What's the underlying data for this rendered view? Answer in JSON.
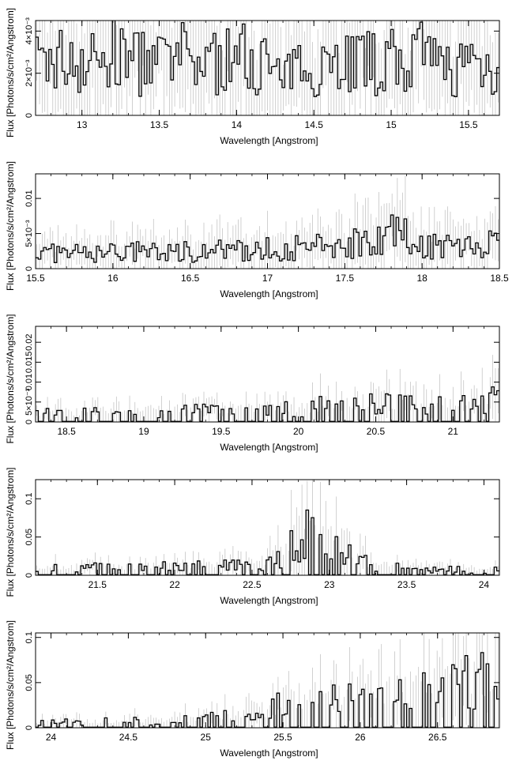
{
  "panels": [
    {
      "xlabel": "Wavelength [Angstrom]",
      "ylabel": "Flux [Photons/s/cm²/Angstrom]",
      "xlim": [
        12.7,
        15.7
      ],
      "ylim": [
        0,
        0.0045
      ],
      "x_ticks": [
        "13",
        "13.5",
        "14",
        "14.5",
        "15",
        "15.5"
      ],
      "x_tick_values": [
        13,
        13.5,
        14,
        14.5,
        15,
        15.5
      ],
      "y_ticks": [
        "0",
        "2×10⁻³",
        "4×10⁻³"
      ],
      "y_tick_values": [
        0,
        0.002,
        0.004
      ]
    },
    {
      "xlabel": "Wavelength [Angstrom]",
      "ylabel": "Flux [Photons/s/cm²/Angstrom]",
      "xlim": [
        15.5,
        18.5
      ],
      "ylim": [
        0,
        0.0135
      ],
      "x_ticks": [
        "15.5",
        "16",
        "16.5",
        "17",
        "17.5",
        "18",
        "18.5"
      ],
      "x_tick_values": [
        15.5,
        16,
        16.5,
        17,
        17.5,
        18,
        18.5
      ],
      "y_ticks": [
        "0",
        "5×10⁻³",
        "0.01"
      ],
      "y_tick_values": [
        0,
        0.005,
        0.01
      ]
    },
    {
      "xlabel": "Wavelength [Angstrom]",
      "ylabel": "Flux [Photons/s/cm²/Angstrom]",
      "xlim": [
        18.3,
        21.3
      ],
      "ylim": [
        0,
        0.024
      ],
      "x_ticks": [
        "18.5",
        "19",
        "19.5",
        "20",
        "20.5",
        "21"
      ],
      "x_tick_values": [
        18.5,
        19,
        19.5,
        20,
        20.5,
        21
      ],
      "y_ticks": [
        "0",
        "5×10⁻³",
        "0.01",
        "0.015",
        "0.02"
      ],
      "y_tick_values": [
        0,
        0.005,
        0.01,
        0.015,
        0.02
      ]
    },
    {
      "xlabel": "Wavelength [Angstrom]",
      "ylabel": "Flux [Photons/s/cm²/Angstrom]",
      "xlim": [
        21.1,
        24.1
      ],
      "ylim": [
        0,
        0.125
      ],
      "x_ticks": [
        "21.5",
        "22",
        "22.5",
        "23",
        "23.5",
        "24"
      ],
      "x_tick_values": [
        21.5,
        22,
        22.5,
        23,
        23.5,
        24
      ],
      "y_ticks": [
        "0",
        "0.05",
        "0.1"
      ],
      "y_tick_values": [
        0,
        0.05,
        0.1
      ]
    },
    {
      "xlabel": "Wavelength [Angstrom]",
      "ylabel": "Flux [Photons/s/cm²/Angstrom]",
      "xlim": [
        23.9,
        26.9
      ],
      "ylim": [
        0,
        0.105
      ],
      "x_ticks": [
        "24",
        "24.5",
        "25",
        "25.5",
        "26",
        "26.5"
      ],
      "x_tick_values": [
        24,
        24.5,
        25,
        25.5,
        26,
        26.5
      ],
      "y_ticks": [
        "0",
        "0.05",
        "0.1"
      ],
      "y_tick_values": [
        0,
        0.05,
        0.1
      ]
    }
  ],
  "chart_data": [
    {
      "type": "line",
      "xlim": [
        12.7,
        15.7
      ],
      "ylim": [
        0,
        0.0045
      ],
      "xlabel": "Wavelength [Angstrom]",
      "ylabel": "Flux [Photons/s/cm²/Angstrom]",
      "x_ticks": [
        13,
        13.5,
        14,
        14.5,
        15,
        15.5
      ],
      "y_ticks": [
        0,
        0.002,
        0.004
      ],
      "x": [
        12.75,
        12.9,
        13.05,
        13.2,
        13.35,
        13.5,
        13.65,
        13.8,
        13.95,
        14.1,
        14.2,
        14.3,
        14.45,
        14.6,
        14.75,
        14.9,
        15.05,
        15.2,
        15.35,
        15.5,
        15.65
      ],
      "y": [
        0.0024,
        0.0027,
        0.0025,
        0.0028,
        0.0026,
        0.0024,
        0.0027,
        0.0025,
        0.0026,
        0.0029,
        0.0024,
        0.0016,
        0.0025,
        0.0026,
        0.0027,
        0.0024,
        0.0026,
        0.0027,
        0.0022,
        0.0025,
        0.0024
      ]
    },
    {
      "type": "line",
      "xlim": [
        15.5,
        18.5
      ],
      "ylim": [
        0,
        0.0135
      ],
      "xlabel": "Wavelength [Angstrom]",
      "ylabel": "Flux [Photons/s/cm²/Angstrom]",
      "x_ticks": [
        15.5,
        16,
        16.5,
        17,
        17.5,
        18,
        18.5
      ],
      "y_ticks": [
        0,
        0.005,
        0.01
      ],
      "x": [
        15.55,
        15.8,
        16.05,
        16.3,
        16.55,
        16.8,
        17.05,
        17.3,
        17.55,
        17.7,
        17.85,
        18.0,
        18.2,
        18.45
      ],
      "y": [
        0.0022,
        0.0021,
        0.0024,
        0.0023,
        0.0026,
        0.0025,
        0.0028,
        0.003,
        0.0036,
        0.0052,
        0.0048,
        0.0035,
        0.0032,
        0.0033
      ]
    },
    {
      "type": "line",
      "xlim": [
        18.3,
        21.3
      ],
      "ylim": [
        0,
        0.024
      ],
      "xlabel": "Wavelength [Angstrom]",
      "ylabel": "Flux [Photons/s/cm²/Angstrom]",
      "x_ticks": [
        18.5,
        19,
        19.5,
        20,
        20.5,
        21
      ],
      "y_ticks": [
        0,
        0.005,
        0.01,
        0.015,
        0.02
      ],
      "x": [
        18.35,
        18.6,
        18.85,
        19.1,
        19.35,
        19.6,
        19.85,
        20.1,
        20.35,
        20.6,
        20.85,
        21.1,
        21.25
      ],
      "y": [
        0.0022,
        0.0024,
        0.0026,
        0.003,
        0.0027,
        0.0029,
        0.0033,
        0.0038,
        0.0042,
        0.0045,
        0.0048,
        0.0052,
        0.0055
      ]
    },
    {
      "type": "line",
      "xlim": [
        21.1,
        24.1
      ],
      "ylim": [
        0,
        0.125
      ],
      "xlabel": "Wavelength [Angstrom]",
      "ylabel": "Flux [Photons/s/cm²/Angstrom]",
      "x_ticks": [
        21.5,
        22,
        22.5,
        23,
        23.5,
        24
      ],
      "y_ticks": [
        0,
        0.05,
        0.1
      ],
      "x": [
        21.15,
        21.5,
        22.0,
        22.5,
        22.7,
        22.85,
        22.92,
        23.0,
        23.1,
        23.25,
        23.4,
        23.6,
        24.05
      ],
      "y": [
        0.009,
        0.01,
        0.011,
        0.014,
        0.025,
        0.055,
        0.068,
        0.05,
        0.03,
        0.016,
        0.012,
        0.008,
        0.007
      ]
    },
    {
      "type": "line",
      "xlim": [
        23.9,
        26.9
      ],
      "ylim": [
        0,
        0.105
      ],
      "xlabel": "Wavelength [Angstrom]",
      "ylabel": "Flux [Photons/s/cm²/Angstrom]",
      "x_ticks": [
        24,
        24.5,
        25,
        25.5,
        26,
        26.5
      ],
      "y_ticks": [
        0,
        0.05,
        0.1
      ],
      "x": [
        23.95,
        24.5,
        25.0,
        25.4,
        25.6,
        25.9,
        26.1,
        26.4,
        26.6,
        26.85
      ],
      "y": [
        0.006,
        0.007,
        0.01,
        0.018,
        0.034,
        0.037,
        0.04,
        0.045,
        0.05,
        0.054
      ]
    }
  ]
}
